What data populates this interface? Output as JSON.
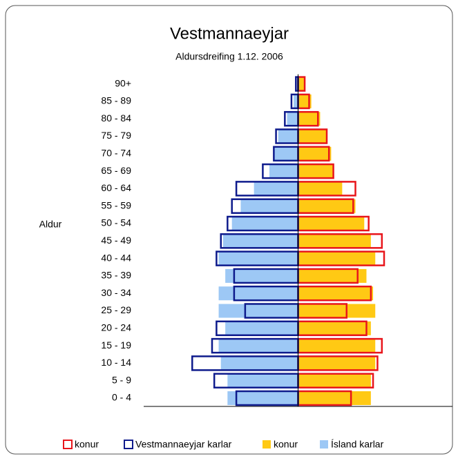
{
  "chart_data": {
    "type": "pyramid",
    "title": "Vestmannaeyjar",
    "subtitle": "Aldursdreifing 1.12. 2006",
    "y_label": "Aldur",
    "categories": [
      "0 - 4",
      "5 - 9",
      "10 - 14",
      "15 - 19",
      "20 - 24",
      "25 - 29",
      "30 - 34",
      "35 - 39",
      "40 - 44",
      "45 - 49",
      "50 - 54",
      "55 - 59",
      "60 - 64",
      "65 - 69",
      "70 - 74",
      "75 - 79",
      "80 - 84",
      "85 - 89",
      "90+"
    ],
    "xlim": [
      -7,
      7
    ],
    "series": [
      {
        "name": "konur",
        "color": "#e8151b",
        "style": "outline",
        "side": "right",
        "values": [
          2.4,
          3.4,
          3.6,
          3.8,
          3.1,
          2.2,
          3.3,
          2.7,
          3.9,
          3.8,
          3.2,
          2.5,
          2.6,
          1.6,
          1.4,
          1.3,
          0.9,
          0.5,
          0.3
        ]
      },
      {
        "name": "Vestmannaeyjar karlar",
        "color": "#0d1a8c",
        "style": "outline",
        "side": "left",
        "values": [
          2.8,
          3.8,
          4.8,
          3.9,
          3.7,
          2.4,
          2.9,
          2.9,
          3.7,
          3.5,
          3.2,
          3.0,
          2.8,
          1.6,
          1.1,
          1.0,
          0.6,
          0.3,
          0.1
        ]
      },
      {
        "name": "konur",
        "color": "#ffc914",
        "style": "fill",
        "side": "right",
        "values": [
          3.3,
          3.3,
          3.5,
          3.5,
          3.3,
          3.5,
          3.4,
          3.1,
          3.5,
          3.3,
          3.0,
          2.6,
          2.0,
          1.6,
          1.5,
          1.3,
          1.0,
          0.6,
          0.3
        ]
      },
      {
        "name": "Ísland karlar",
        "color": "#9dc8f5",
        "style": "fill",
        "side": "left",
        "values": [
          3.2,
          3.2,
          3.5,
          3.6,
          3.3,
          3.6,
          3.6,
          3.3,
          3.6,
          3.4,
          3.0,
          2.6,
          2.0,
          1.3,
          1.1,
          0.9,
          0.5,
          0.2,
          0.05
        ]
      }
    ]
  }
}
